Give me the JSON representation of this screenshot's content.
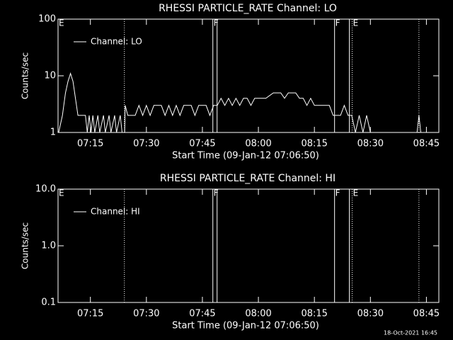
{
  "chart_data": [
    {
      "type": "line",
      "title": "RHESSI PARTICLE_RATE Channel: LO",
      "ylabel": "Counts/sec",
      "xlabel": "Start Time (09-Jan-12 07:06:50)",
      "log_y": true,
      "legend": "top-left",
      "xlim": [
        "07:06:20",
        "08:48:20"
      ],
      "xticks": [
        "07:15",
        "07:30",
        "07:45",
        "08:00",
        "08:15",
        "08:30",
        "08:45"
      ],
      "ylim": [
        1,
        100
      ],
      "yticks": [
        1,
        10,
        100
      ],
      "x": [
        "07:06:30",
        "07:07:30",
        "07:08:20",
        "07:09:00",
        "07:09:40",
        "07:10:20",
        "07:11:00",
        "07:11:40",
        "07:13:00",
        "07:13:40",
        "07:14:10",
        "07:14:40",
        "07:15:10",
        "07:15:40",
        "07:16:10",
        "07:17:00",
        "07:17:30",
        "07:18:30",
        "07:19:00",
        "07:20:00",
        "07:20:30",
        "07:21:30",
        "07:22:00",
        "07:23:00",
        "07:23:30",
        "07:24:10",
        "07:24:20",
        "07:25:00",
        "07:26:00",
        "07:27:00",
        "07:28:00",
        "07:29:00",
        "07:30:00",
        "07:31:00",
        "07:32:00",
        "07:34:00",
        "07:35:00",
        "07:36:00",
        "07:37:00",
        "07:38:00",
        "07:39:00",
        "07:40:00",
        "07:42:00",
        "07:43:00",
        "07:44:00",
        "07:46:00",
        "07:47:00",
        "07:48:00",
        "07:49:00",
        "07:50:00",
        "07:51:00",
        "07:52:00",
        "07:53:00",
        "07:54:00",
        "07:55:00",
        "07:56:00",
        "07:57:00",
        "07:58:00",
        "07:59:00",
        "08:00:00",
        "08:02:00",
        "08:04:00",
        "08:06:00",
        "08:07:00",
        "08:08:00",
        "08:10:00",
        "08:11:00",
        "08:12:00",
        "08:13:00",
        "08:14:00",
        "08:15:00",
        "08:17:00",
        "08:19:00",
        "08:20:00",
        "08:22:00",
        "08:23:00",
        "08:24:00",
        "08:25:00",
        "08:26:00",
        "08:27:00",
        "08:28:00",
        "08:29:00",
        "08:30:00",
        "08:42:30",
        "08:43:00",
        "08:43:30",
        "08:46:00"
      ],
      "series": [
        {
          "name": "Channel: LO",
          "color": "#ffffff",
          "values": [
            1,
            2,
            5,
            8,
            11,
            8,
            4,
            2,
            2,
            2,
            1,
            2,
            1,
            2,
            1,
            2,
            1,
            2,
            1,
            2,
            1,
            2,
            1,
            2,
            1,
            1,
            3,
            2,
            2,
            2,
            3,
            2,
            3,
            2,
            3,
            3,
            2,
            3,
            2,
            3,
            2,
            3,
            3,
            2,
            3,
            3,
            2,
            3,
            3,
            4,
            3,
            4,
            3,
            4,
            3,
            4,
            4,
            3,
            4,
            4,
            4,
            5,
            5,
            4,
            5,
            5,
            4,
            4,
            3,
            4,
            3,
            3,
            3,
            2,
            2,
            3,
            2,
            2,
            1,
            2,
            1,
            2,
            1,
            1,
            2,
            1,
            1
          ]
        }
      ],
      "vlines": [
        {
          "x": "07:24:06",
          "style": "dotted"
        },
        {
          "x": "07:47:48",
          "style": "solid"
        },
        {
          "x": "07:48:56",
          "style": "solid"
        },
        {
          "x": "08:20:24",
          "style": "solid"
        },
        {
          "x": "08:24:22",
          "style": "solid"
        },
        {
          "x": "08:25:08",
          "style": "dotted"
        },
        {
          "x": "08:43:00",
          "style": "dotted"
        }
      ],
      "annotations": [
        {
          "label": "E",
          "x": "07:06:20"
        },
        {
          "label": "F",
          "x": "07:47:48"
        },
        {
          "label": "F",
          "x": "08:20:24"
        },
        {
          "label": "E",
          "x": "08:25:08"
        }
      ]
    },
    {
      "type": "line",
      "title": "RHESSI PARTICLE_RATE Channel: HI",
      "ylabel": "Counts/sec",
      "xlabel": "Start Time (09-Jan-12 07:06:50)",
      "log_y": true,
      "legend": "top-left",
      "xlim": [
        "07:06:20",
        "08:48:20"
      ],
      "xticks": [
        "07:15",
        "07:30",
        "07:45",
        "08:00",
        "08:15",
        "08:30",
        "08:45"
      ],
      "ylim": [
        0.1,
        10
      ],
      "yticks": [
        0.1,
        {
          "value": 1,
          "label": "1.0"
        },
        {
          "value": 10,
          "label": "10.0"
        }
      ],
      "x": [],
      "series": [
        {
          "name": "Channel: HI",
          "color": "#ffffff",
          "values": []
        }
      ],
      "vlines": [
        {
          "x": "07:24:06",
          "style": "dotted"
        },
        {
          "x": "07:47:48",
          "style": "solid"
        },
        {
          "x": "07:48:56",
          "style": "solid"
        },
        {
          "x": "08:20:24",
          "style": "solid"
        },
        {
          "x": "08:24:22",
          "style": "solid"
        },
        {
          "x": "08:25:08",
          "style": "dotted"
        },
        {
          "x": "08:43:00",
          "style": "dotted"
        }
      ],
      "annotations": [
        {
          "label": "E",
          "x": "07:06:20"
        },
        {
          "label": "F",
          "x": "07:47:48"
        },
        {
          "label": "F",
          "x": "08:20:24"
        },
        {
          "label": "E",
          "x": "08:25:08"
        }
      ]
    }
  ],
  "footer": "18-Oct-2021 16:45"
}
